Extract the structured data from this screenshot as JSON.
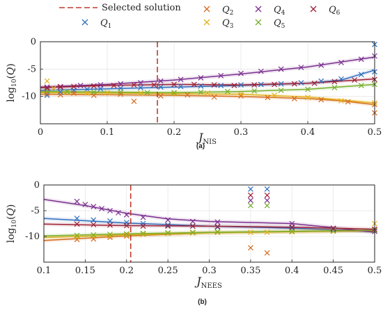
{
  "legend": {
    "selected_label": "Selected solution",
    "entries": [
      "Q1",
      "Q2",
      "Q3",
      "Q4",
      "Q5",
      "Q6"
    ]
  },
  "colors": {
    "Q1": "#2f6fbf",
    "Q2": "#d3691e",
    "Q3": "#e3b21a",
    "Q4": "#7a2f8f",
    "Q5": "#77ad2c",
    "Q6": "#9c1f35",
    "selected": "#c0392b"
  },
  "chart_data": [
    {
      "type": "scatter",
      "caption": "(a)",
      "xlabel": "J_NIS",
      "ylabel": "log10(Q)",
      "xlim": [
        0,
        0.5
      ],
      "ylim": [
        -15,
        0
      ],
      "xticks": [
        0,
        0.1,
        0.2,
        0.3,
        0.4,
        0.5
      ],
      "yticks": [
        0,
        -5,
        -10
      ],
      "grid": true,
      "selected_x": 0.175,
      "series": [
        {
          "name": "Q1",
          "x": [
            0.01,
            0.03,
            0.05,
            0.07,
            0.09,
            0.12,
            0.15,
            0.18,
            0.21,
            0.24,
            0.27,
            0.3,
            0.33,
            0.36,
            0.39,
            0.42,
            0.45,
            0.48,
            0.5,
            0.5
          ],
          "y": [
            -9.8,
            -9.2,
            -8.9,
            -8.7,
            -8.6,
            -8.5,
            -8.4,
            -8.3,
            -8.2,
            -8.1,
            -8.0,
            -7.9,
            -7.8,
            -7.7,
            -7.5,
            -7.2,
            -6.8,
            -6.0,
            -5.5,
            -0.5
          ],
          "fit": [
            [
              0,
              -8.9
            ],
            [
              0.1,
              -8.6
            ],
            [
              0.2,
              -8.3
            ],
            [
              0.3,
              -8.0
            ],
            [
              0.4,
              -7.6
            ],
            [
              0.45,
              -7.0
            ],
            [
              0.5,
              -5.2
            ]
          ]
        },
        {
          "name": "Q2",
          "x": [
            0.01,
            0.03,
            0.05,
            0.08,
            0.12,
            0.14,
            0.18,
            0.22,
            0.26,
            0.3,
            0.34,
            0.38,
            0.42,
            0.46,
            0.5,
            0.5
          ],
          "y": [
            -9.5,
            -9.7,
            -9.4,
            -9.8,
            -9.6,
            -10.9,
            -9.9,
            -9.7,
            -10.1,
            -9.9,
            -10.2,
            -10.4,
            -10.6,
            -11.0,
            -11.5,
            -13.0
          ],
          "fit": [
            [
              0,
              -9.6
            ],
            [
              0.1,
              -9.7
            ],
            [
              0.2,
              -9.8
            ],
            [
              0.3,
              -10.0
            ],
            [
              0.4,
              -10.4
            ],
            [
              0.45,
              -10.8
            ],
            [
              0.5,
              -11.5
            ]
          ]
        },
        {
          "name": "Q3",
          "x": [
            0.01,
            0.02,
            0.04,
            0.07,
            0.1,
            0.15,
            0.2,
            0.25,
            0.3,
            0.35,
            0.4,
            0.45,
            0.5
          ],
          "y": [
            -7.2,
            -8.5,
            -9.2,
            -9.4,
            -9.3,
            -9.4,
            -9.5,
            -9.4,
            -9.6,
            -9.8,
            -10.2,
            -10.8,
            -11.2
          ],
          "fit": [
            [
              0,
              -9.3
            ],
            [
              0.1,
              -9.4
            ],
            [
              0.2,
              -9.5
            ],
            [
              0.3,
              -9.6
            ],
            [
              0.4,
              -10.1
            ],
            [
              0.5,
              -11.2
            ]
          ]
        },
        {
          "name": "Q4",
          "x": [
            0.01,
            0.03,
            0.06,
            0.09,
            0.12,
            0.15,
            0.18,
            0.21,
            0.24,
            0.27,
            0.3,
            0.33,
            0.36,
            0.39,
            0.42,
            0.45,
            0.48,
            0.5
          ],
          "y": [
            -8.3,
            -8.2,
            -8.0,
            -7.9,
            -7.7,
            -7.5,
            -7.2,
            -6.9,
            -6.6,
            -6.2,
            -5.8,
            -5.4,
            -5.0,
            -4.7,
            -4.3,
            -3.8,
            -3.2,
            -2.6
          ],
          "fit": [
            [
              0,
              -8.3
            ],
            [
              0.1,
              -7.8
            ],
            [
              0.2,
              -7.0
            ],
            [
              0.3,
              -5.9
            ],
            [
              0.4,
              -4.6
            ],
            [
              0.5,
              -2.8
            ]
          ]
        },
        {
          "name": "Q5",
          "x": [
            0.01,
            0.04,
            0.08,
            0.12,
            0.16,
            0.2,
            0.24,
            0.28,
            0.32,
            0.36,
            0.4,
            0.44,
            0.48,
            0.5
          ],
          "y": [
            -9.0,
            -9.1,
            -9.2,
            -9.2,
            -9.3,
            -9.3,
            -9.2,
            -9.1,
            -9.0,
            -8.9,
            -8.7,
            -8.4,
            -8.0,
            -7.8
          ],
          "fit": [
            [
              0,
              -9.1
            ],
            [
              0.1,
              -9.2
            ],
            [
              0.2,
              -9.3
            ],
            [
              0.3,
              -9.1
            ],
            [
              0.4,
              -8.7
            ],
            [
              0.5,
              -7.8
            ]
          ]
        },
        {
          "name": "Q6",
          "x": [
            0.01,
            0.03,
            0.05,
            0.08,
            0.11,
            0.14,
            0.17,
            0.2,
            0.23,
            0.26,
            0.29,
            0.32,
            0.35,
            0.38,
            0.41,
            0.44,
            0.47,
            0.5
          ],
          "y": [
            -8.5,
            -8.3,
            -8.2,
            -8.1,
            -8.0,
            -7.9,
            -7.9,
            -7.8,
            -7.8,
            -7.9,
            -8.0,
            -7.9,
            -7.8,
            -7.7,
            -7.6,
            -7.3,
            -7.0,
            -6.9
          ],
          "fit": [
            [
              0,
              -8.4
            ],
            [
              0.1,
              -8.0
            ],
            [
              0.2,
              -7.8
            ],
            [
              0.3,
              -7.9
            ],
            [
              0.4,
              -7.6
            ],
            [
              0.5,
              -6.8
            ]
          ]
        }
      ]
    },
    {
      "type": "scatter",
      "caption": "(b)",
      "xlabel": "J_NEES",
      "ylabel": "log10(Q)",
      "xlim": [
        0.1,
        0.5
      ],
      "ylim": [
        -15,
        0
      ],
      "xticks": [
        0.1,
        0.15,
        0.2,
        0.25,
        0.3,
        0.35,
        0.4,
        0.45,
        0.5
      ],
      "yticks": [
        0,
        -5,
        -10
      ],
      "grid": true,
      "selected_x": 0.205,
      "series": [
        {
          "name": "Q1",
          "x": [
            0.14,
            0.16,
            0.18,
            0.2,
            0.22,
            0.25,
            0.28,
            0.31,
            0.35,
            0.37,
            0.4,
            0.45,
            0.5
          ],
          "y": [
            -6.5,
            -6.8,
            -7.0,
            -7.3,
            -7.5,
            -7.8,
            -8.0,
            -8.2,
            -0.8,
            -0.8,
            -8.4,
            -8.7,
            -9.0
          ],
          "fit": [
            [
              0.1,
              -6.5
            ],
            [
              0.2,
              -7.4
            ],
            [
              0.3,
              -8.0
            ],
            [
              0.4,
              -8.4
            ],
            [
              0.5,
              -9.0
            ]
          ]
        },
        {
          "name": "Q2",
          "x": [
            0.14,
            0.16,
            0.18,
            0.2,
            0.22,
            0.25,
            0.28,
            0.31,
            0.35,
            0.37,
            0.4,
            0.45,
            0.5
          ],
          "y": [
            -10.6,
            -10.5,
            -10.2,
            -9.9,
            -9.6,
            -9.4,
            -9.3,
            -9.2,
            -12.2,
            -13.2,
            -9.1,
            -9.0,
            -8.9
          ],
          "fit": [
            [
              0.1,
              -10.8
            ],
            [
              0.2,
              -9.9
            ],
            [
              0.3,
              -9.3
            ],
            [
              0.4,
              -9.1
            ],
            [
              0.5,
              -8.9
            ]
          ]
        },
        {
          "name": "Q3",
          "x": [
            0.14,
            0.16,
            0.18,
            0.2,
            0.22,
            0.25,
            0.28,
            0.31,
            0.35,
            0.37,
            0.4,
            0.45,
            0.5
          ],
          "y": [
            -10.1,
            -10.0,
            -9.9,
            -9.7,
            -9.6,
            -9.4,
            -9.3,
            -9.2,
            -9.2,
            -9.2,
            -9.1,
            -9.0,
            -7.5
          ],
          "fit": [
            [
              0.1,
              -10.2
            ],
            [
              0.2,
              -9.7
            ],
            [
              0.3,
              -9.3
            ],
            [
              0.4,
              -9.1
            ],
            [
              0.5,
              -8.8
            ]
          ]
        },
        {
          "name": "Q4",
          "x": [
            0.14,
            0.15,
            0.16,
            0.17,
            0.18,
            0.19,
            0.2,
            0.22,
            0.25,
            0.28,
            0.31,
            0.35,
            0.37,
            0.4,
            0.45,
            0.5
          ],
          "y": [
            -3.2,
            -3.8,
            -4.2,
            -4.6,
            -5.0,
            -5.4,
            -5.8,
            -6.3,
            -6.8,
            -7.1,
            -7.2,
            -3.0,
            -3.0,
            -7.5,
            -8.5,
            -9.0
          ],
          "fit": [
            [
              0.1,
              -2.8
            ],
            [
              0.15,
              -4.0
            ],
            [
              0.2,
              -5.5
            ],
            [
              0.25,
              -6.6
            ],
            [
              0.3,
              -7.1
            ],
            [
              0.4,
              -7.5
            ],
            [
              0.45,
              -8.3
            ],
            [
              0.5,
              -9.2
            ]
          ]
        },
        {
          "name": "Q5",
          "x": [
            0.14,
            0.16,
            0.18,
            0.2,
            0.22,
            0.25,
            0.28,
            0.31,
            0.35,
            0.37,
            0.4,
            0.45,
            0.5
          ],
          "y": [
            -9.8,
            -9.7,
            -9.6,
            -9.5,
            -9.4,
            -9.3,
            -9.2,
            -9.1,
            -4.0,
            -4.0,
            -9.0,
            -8.9,
            -8.8
          ],
          "fit": [
            [
              0.1,
              -9.9
            ],
            [
              0.2,
              -9.5
            ],
            [
              0.3,
              -9.2
            ],
            [
              0.4,
              -9.0
            ],
            [
              0.5,
              -8.8
            ]
          ]
        },
        {
          "name": "Q6",
          "x": [
            0.14,
            0.16,
            0.18,
            0.2,
            0.22,
            0.25,
            0.28,
            0.31,
            0.35,
            0.37,
            0.4,
            0.45,
            0.5
          ],
          "y": [
            -7.6,
            -7.7,
            -7.8,
            -7.9,
            -8.0,
            -8.0,
            -8.0,
            -8.1,
            -2.0,
            -2.0,
            -8.2,
            -8.4,
            -8.6
          ],
          "fit": [
            [
              0.1,
              -7.6
            ],
            [
              0.2,
              -7.9
            ],
            [
              0.3,
              -8.0
            ],
            [
              0.4,
              -8.2
            ],
            [
              0.5,
              -8.6
            ]
          ]
        }
      ]
    }
  ]
}
